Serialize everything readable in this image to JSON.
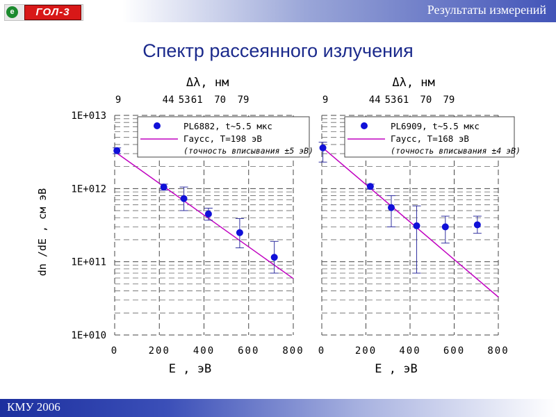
{
  "header": {
    "title": "Результаты измерений"
  },
  "logo": {
    "badge": "e",
    "text": "ГОЛ-3"
  },
  "page_title": "Спектр рассеянного излучения",
  "footer": {
    "text": "КМУ 2006"
  },
  "colors": {
    "points": "#1010d8",
    "fit": "#c000c0",
    "title": "#1b2a8c"
  },
  "chart_data": [
    {
      "type": "scatter",
      "x": [
        10,
        220,
        310,
        420,
        560,
        715
      ],
      "y": [
        3300000000000.0,
        1050000000000.0,
        730000000000.0,
        450000000000.0,
        250000000000.0,
        115000000000.0
      ],
      "y_err_low": [
        3000000000000.0,
        950000000000.0,
        500000000000.0,
        370000000000.0,
        155000000000.0,
        70000000000.0
      ],
      "y_err_high": [
        3600000000000.0,
        1150000000000.0,
        1050000000000.0,
        540000000000.0,
        390000000000.0,
        190000000000.0
      ],
      "fit": {
        "x": [
          0,
          800
        ],
        "y": [
          3200000000000.0,
          59000000000.0
        ]
      },
      "xlabel": "E , эВ",
      "ylabel": "dn /dE , см эВ",
      "x_top_label": "Δλ, нм",
      "x_ticks": [
        "0",
        "200",
        "400",
        "600",
        "800"
      ],
      "x_top_ticks": [
        "9",
        "44",
        "53",
        "61",
        "70",
        "79"
      ],
      "y_ticks": [
        "1E+013",
        "1E+012",
        "1E+011",
        "1E+010"
      ],
      "xlim": [
        0,
        800
      ],
      "ylim": [
        10000000000.0,
        10000000000000.0
      ],
      "yscale": "log",
      "legend": {
        "position": "top-right",
        "entries": [
          "PL6882, t~5.5 мкс",
          "Гаусс, T=198 эВ"
        ],
        "note": "(точность вписывания ±5 эВ)"
      }
    },
    {
      "type": "scatter",
      "x": [
        5,
        220,
        315,
        430,
        560,
        705
      ],
      "y": [
        3600000000000.0,
        1070000000000.0,
        550000000000.0,
        310000000000.0,
        300000000000.0,
        320000000000.0
      ],
      "y_err_low": [
        2300000000000.0,
        980000000000.0,
        300000000000.0,
        70000000000.0,
        180000000000.0,
        245000000000.0
      ],
      "y_err_high": [
        4300000000000.0,
        1150000000000.0,
        800000000000.0,
        580000000000.0,
        420000000000.0,
        420000000000.0
      ],
      "fit": {
        "x": [
          0,
          800
        ],
        "y": [
          3700000000000.0,
          33000000000.0
        ]
      },
      "xlabel": "E , эВ",
      "x_top_label": "Δλ, нм",
      "x_ticks": [
        "0",
        "200",
        "400",
        "600",
        "800"
      ],
      "x_top_ticks": [
        "9",
        "44",
        "53",
        "61",
        "70",
        "79"
      ],
      "xlim": [
        0,
        800
      ],
      "ylim": [
        10000000000.0,
        10000000000000.0
      ],
      "yscale": "log",
      "legend": {
        "position": "top-right",
        "entries": [
          "PL6909, t~5.5 мкс",
          "Гаусс, T=168 эВ"
        ],
        "note": "(точность вписывания ±4 эВ)"
      }
    }
  ]
}
